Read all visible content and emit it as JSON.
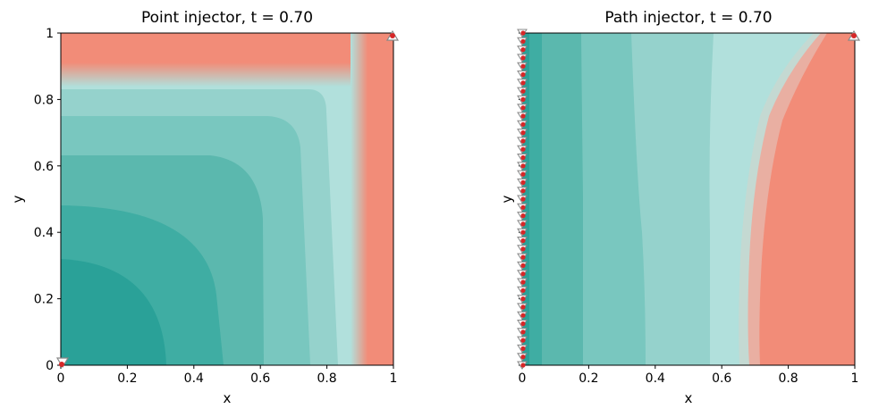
{
  "chart_data": [
    {
      "type": "heatmap",
      "title": "Point injector, t = 0.70",
      "xlabel": "x",
      "ylabel": "y",
      "xlim": [
        0,
        1
      ],
      "ylim": [
        0,
        1
      ],
      "xticks": [
        "0",
        "0.2",
        "0.4",
        "0.6",
        "0.8",
        "1"
      ],
      "yticks": [
        "0",
        "0.2",
        "0.4",
        "0.6",
        "0.8",
        "1"
      ],
      "xtick_values": [
        0,
        0.2,
        0.4,
        0.6,
        0.8,
        1
      ],
      "ytick_values": [
        0,
        0.2,
        0.4,
        0.6,
        0.8,
        1
      ],
      "grid": false,
      "colors": [
        "#2aa198",
        "#3fada3",
        "#5bb8ae",
        "#79c7bf",
        "#95d2cc",
        "#b1e0dc",
        "#f28c78"
      ],
      "injectors": [
        {
          "x": 0,
          "y": 0
        }
      ],
      "producers": [
        {
          "x": 1,
          "y": 1
        }
      ]
    },
    {
      "type": "heatmap",
      "title": "Path injector, t = 0.70",
      "xlabel": "x",
      "ylabel": "y",
      "xlim": [
        0,
        1
      ],
      "ylim": [
        0,
        1
      ],
      "xticks": [
        "0",
        "0.2",
        "0.4",
        "0.6",
        "0.8",
        "1"
      ],
      "yticks": [
        "0",
        "0.2",
        "0.4",
        "0.6",
        "0.8",
        "1"
      ],
      "xtick_values": [
        0,
        0.2,
        0.4,
        0.6,
        0.8,
        1
      ],
      "ytick_values": [
        0,
        0.2,
        0.4,
        0.6,
        0.8,
        1
      ],
      "grid": false,
      "colors": [
        "#2aa198",
        "#3fada3",
        "#5bb8ae",
        "#79c7bf",
        "#95d2cc",
        "#b1e0dc",
        "#f28c78"
      ],
      "injector_path": {
        "x": 0,
        "y_from": 0,
        "y_to": 1
      },
      "producers": [
        {
          "x": 1,
          "y": 1
        }
      ]
    }
  ]
}
